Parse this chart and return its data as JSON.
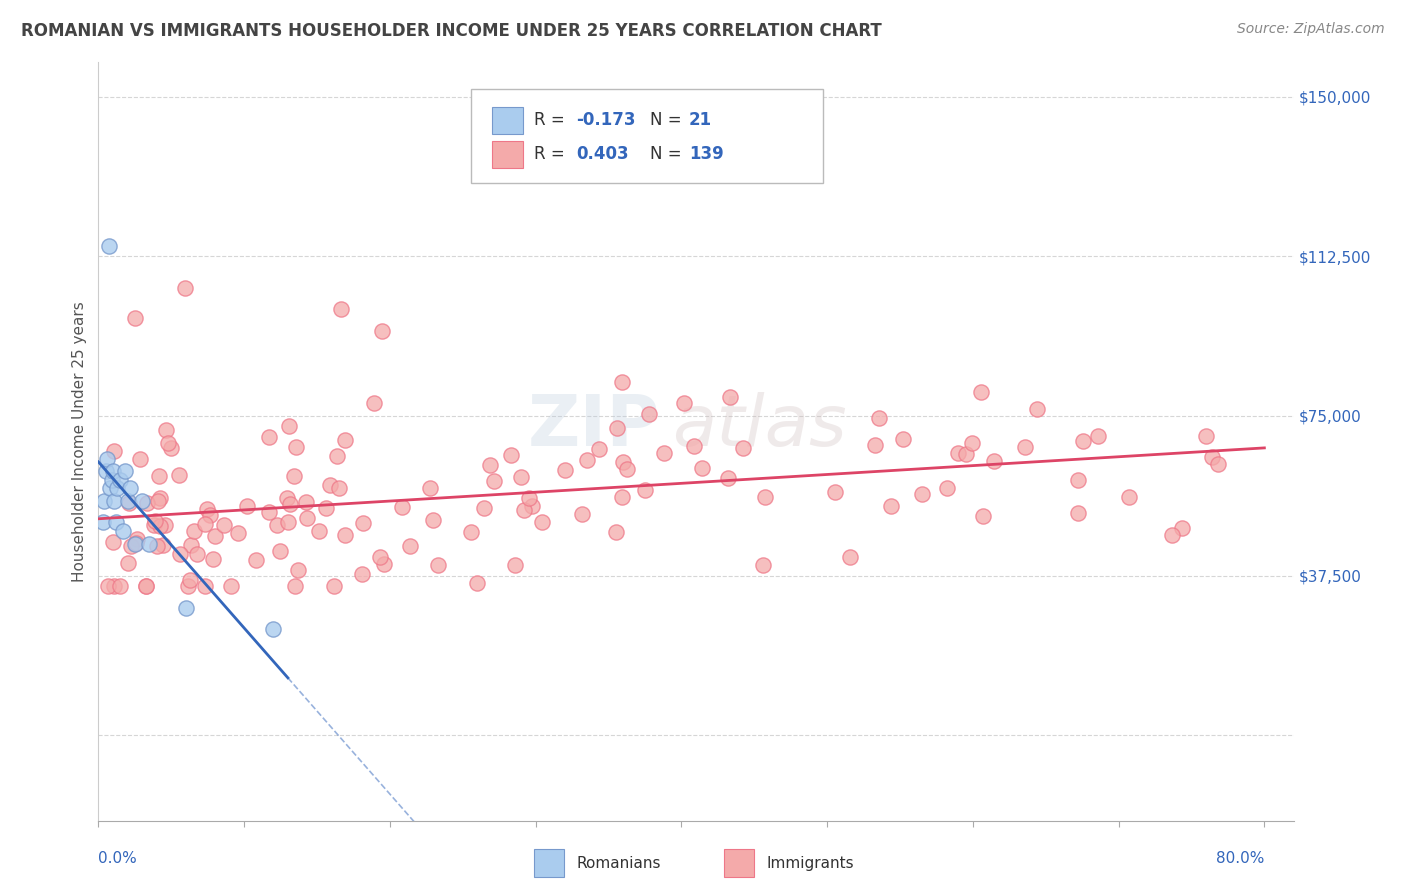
{
  "title": "ROMANIAN VS IMMIGRANTS HOUSEHOLDER INCOME UNDER 25 YEARS CORRELATION CHART",
  "source": "Source: ZipAtlas.com",
  "ylabel": "Householder Income Under 25 years",
  "y_ticks": [
    0,
    37500,
    75000,
    112500,
    150000
  ],
  "y_tick_labels_right": [
    "",
    "$37,500",
    "$75,000",
    "$112,500",
    "$150,000"
  ],
  "xlim": [
    0.0,
    0.82
  ],
  "ylim": [
    -20000,
    158000
  ],
  "legend_r1": "R = -0.173",
  "legend_n1": "N =  21",
  "legend_r2": "R = 0.403",
  "legend_n2": "N = 139",
  "romanian_color": "#aaccee",
  "romanian_edge": "#7799cc",
  "immigrant_color": "#f4aaaa",
  "immigrant_edge": "#ee7788",
  "trendline_romanian_color": "#3366bb",
  "trendline_immigrant_color": "#dd4466",
  "watermark_zip": "ZIP",
  "watermark_atlas": "atlas",
  "background_color": "#ffffff",
  "grid_color": "#cccccc",
  "title_color": "#444444",
  "axis_label_color": "#3366bb",
  "tick_label_color": "#3366bb",
  "source_color": "#888888",
  "ylabel_color": "#555555",
  "bottom_legend_color": "#333333"
}
